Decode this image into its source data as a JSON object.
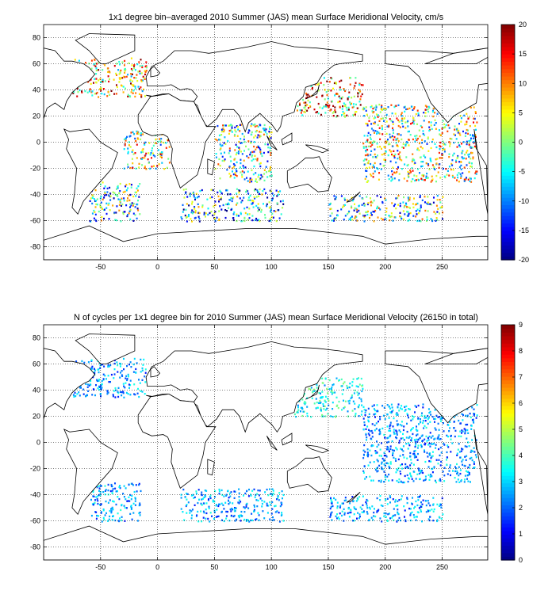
{
  "chart_data": [
    {
      "type": "heatmap",
      "title": "1x1 degree bin–averaged 2010 Summer (JAS) mean Surface Meridional Velocity, cm/s",
      "xlabel": "",
      "ylabel": "",
      "xlim": [
        -100,
        290
      ],
      "ylim": [
        -90,
        90
      ],
      "xticks": [
        -50,
        0,
        50,
        100,
        150,
        200,
        250
      ],
      "yticks": [
        -80,
        -60,
        -40,
        -20,
        0,
        20,
        40,
        60,
        80
      ],
      "grid": true,
      "colorbar": {
        "min": -20,
        "max": 20,
        "ticks": [
          -20,
          -15,
          -10,
          -5,
          0,
          5,
          10,
          15,
          20
        ],
        "colormap": "jet"
      },
      "regions": [
        {
          "x": [
            -75,
            -10
          ],
          "y": [
            35,
            65
          ],
          "value": 6
        },
        {
          "x": [
            -60,
            -15
          ],
          "y": [
            -60,
            -30
          ],
          "value": -4
        },
        {
          "x": [
            -30,
            10
          ],
          "y": [
            -20,
            10
          ],
          "value": 2
        },
        {
          "x": [
            20,
            110
          ],
          "y": [
            -60,
            -35
          ],
          "value": -6
        },
        {
          "x": [
            50,
            100
          ],
          "y": [
            -30,
            15
          ],
          "value": -2
        },
        {
          "x": [
            120,
            180
          ],
          "y": [
            20,
            50
          ],
          "value": 8
        },
        {
          "x": [
            150,
            250
          ],
          "y": [
            -60,
            -40
          ],
          "value": -3
        },
        {
          "x": [
            180,
            280
          ],
          "y": [
            -30,
            30
          ],
          "value": 1
        }
      ]
    },
    {
      "type": "heatmap",
      "title": "N of cycles per 1x1 degree bin for 2010 Summer (JAS) mean Surface Meridional Velocity (26150 in total)",
      "xlabel": "",
      "ylabel": "",
      "xlim": [
        -100,
        290
      ],
      "ylim": [
        -90,
        90
      ],
      "xticks": [
        -50,
        0,
        50,
        100,
        150,
        200,
        250
      ],
      "yticks": [
        -80,
        -60,
        -40,
        -20,
        0,
        20,
        40,
        60,
        80
      ],
      "grid": true,
      "total_cycles": 26150,
      "colorbar": {
        "min": 0,
        "max": 9,
        "ticks": [
          0,
          1,
          2,
          3,
          4,
          5,
          6,
          7,
          8,
          9
        ],
        "colormap": "jet"
      },
      "regions": [
        {
          "x": [
            -75,
            -10
          ],
          "y": [
            35,
            65
          ],
          "value": 2
        },
        {
          "x": [
            -60,
            -15
          ],
          "y": [
            -60,
            -30
          ],
          "value": 2
        },
        {
          "x": [
            20,
            110
          ],
          "y": [
            -60,
            -35
          ],
          "value": 2
        },
        {
          "x": [
            120,
            180
          ],
          "y": [
            20,
            50
          ],
          "value": 3
        },
        {
          "x": [
            150,
            250
          ],
          "y": [
            -60,
            -40
          ],
          "value": 2
        },
        {
          "x": [
            180,
            280
          ],
          "y": [
            -30,
            30
          ],
          "value": 2
        }
      ]
    }
  ]
}
